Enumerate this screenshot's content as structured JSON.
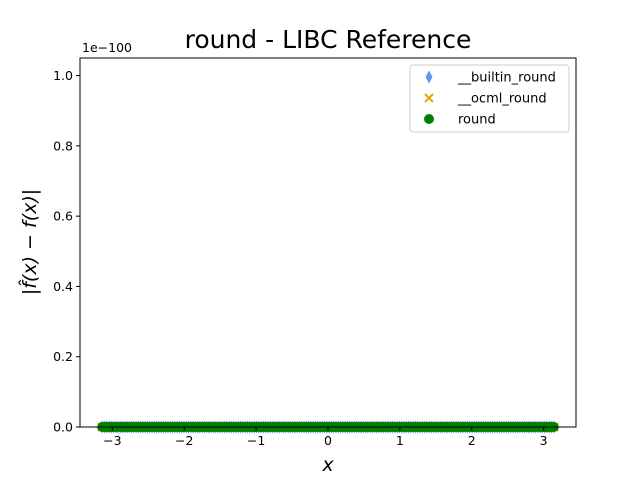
{
  "chart_data": {
    "type": "scatter",
    "title": "round - LIBC Reference",
    "xlabel": "x",
    "ylabel": "|f̂(x) − f(x)|",
    "y_offset_label": "1e−100",
    "xlim": [
      -3.45,
      3.45
    ],
    "ylim": [
      0,
      1.05
    ],
    "x_ticks": [
      -3,
      -2,
      -1,
      0,
      1,
      2,
      3
    ],
    "x_tick_labels": [
      "−3",
      "−2",
      "−1",
      "0",
      "1",
      "2",
      "3"
    ],
    "y_ticks": [
      0.0,
      0.2,
      0.4,
      0.6,
      0.8,
      1.0
    ],
    "y_tick_labels": [
      "0.0",
      "0.2",
      "0.4",
      "0.6",
      "0.8",
      "1.0"
    ],
    "legend_position": "top-right",
    "x_range": [
      -3.14159,
      3.14159
    ],
    "point_count": 200,
    "series": [
      {
        "name": "__builtin_round",
        "marker": "diamond",
        "color": "#6495ed",
        "y_value": 0
      },
      {
        "name": "__ocml_round",
        "marker": "x",
        "color": "#e6a800",
        "y_value": 0
      },
      {
        "name": "round",
        "marker": "circle",
        "color": "#008000",
        "y_value": 0
      }
    ]
  }
}
